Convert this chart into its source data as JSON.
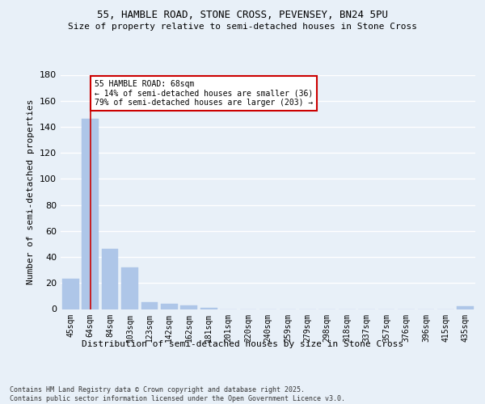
{
  "title1": "55, HAMBLE ROAD, STONE CROSS, PEVENSEY, BN24 5PU",
  "title2": "Size of property relative to semi-detached houses in Stone Cross",
  "xlabel": "Distribution of semi-detached houses by size in Stone Cross",
  "ylabel": "Number of semi-detached properties",
  "categories": [
    "45sqm",
    "64sqm",
    "84sqm",
    "103sqm",
    "123sqm",
    "142sqm",
    "162sqm",
    "181sqm",
    "201sqm",
    "220sqm",
    "240sqm",
    "259sqm",
    "279sqm",
    "298sqm",
    "318sqm",
    "337sqm",
    "357sqm",
    "376sqm",
    "396sqm",
    "415sqm",
    "435sqm"
  ],
  "values": [
    23,
    146,
    46,
    32,
    5,
    4,
    3,
    1,
    0,
    0,
    0,
    0,
    0,
    0,
    0,
    0,
    0,
    0,
    0,
    0,
    2
  ],
  "bar_color": "#aec6e8",
  "bar_edge_color": "#aec6e8",
  "property_line_x": 1,
  "annotation_text": "55 HAMBLE ROAD: 68sqm\n← 14% of semi-detached houses are smaller (36)\n79% of semi-detached houses are larger (203) →",
  "annotation_box_color": "#ffffff",
  "annotation_box_edge": "#cc0000",
  "vline_color": "#cc0000",
  "footer": "Contains HM Land Registry data © Crown copyright and database right 2025.\nContains public sector information licensed under the Open Government Licence v3.0.",
  "bg_color": "#e8f0f8",
  "plot_bg_color": "#e8f0f8",
  "grid_color": "#ffffff",
  "ylim": [
    0,
    180
  ],
  "yticks": [
    0,
    20,
    40,
    60,
    80,
    100,
    120,
    140,
    160,
    180
  ],
  "title1_fontsize": 9,
  "title2_fontsize": 8,
  "ylabel_fontsize": 8,
  "xlabel_fontsize": 8,
  "tick_fontsize": 7,
  "footer_fontsize": 6
}
